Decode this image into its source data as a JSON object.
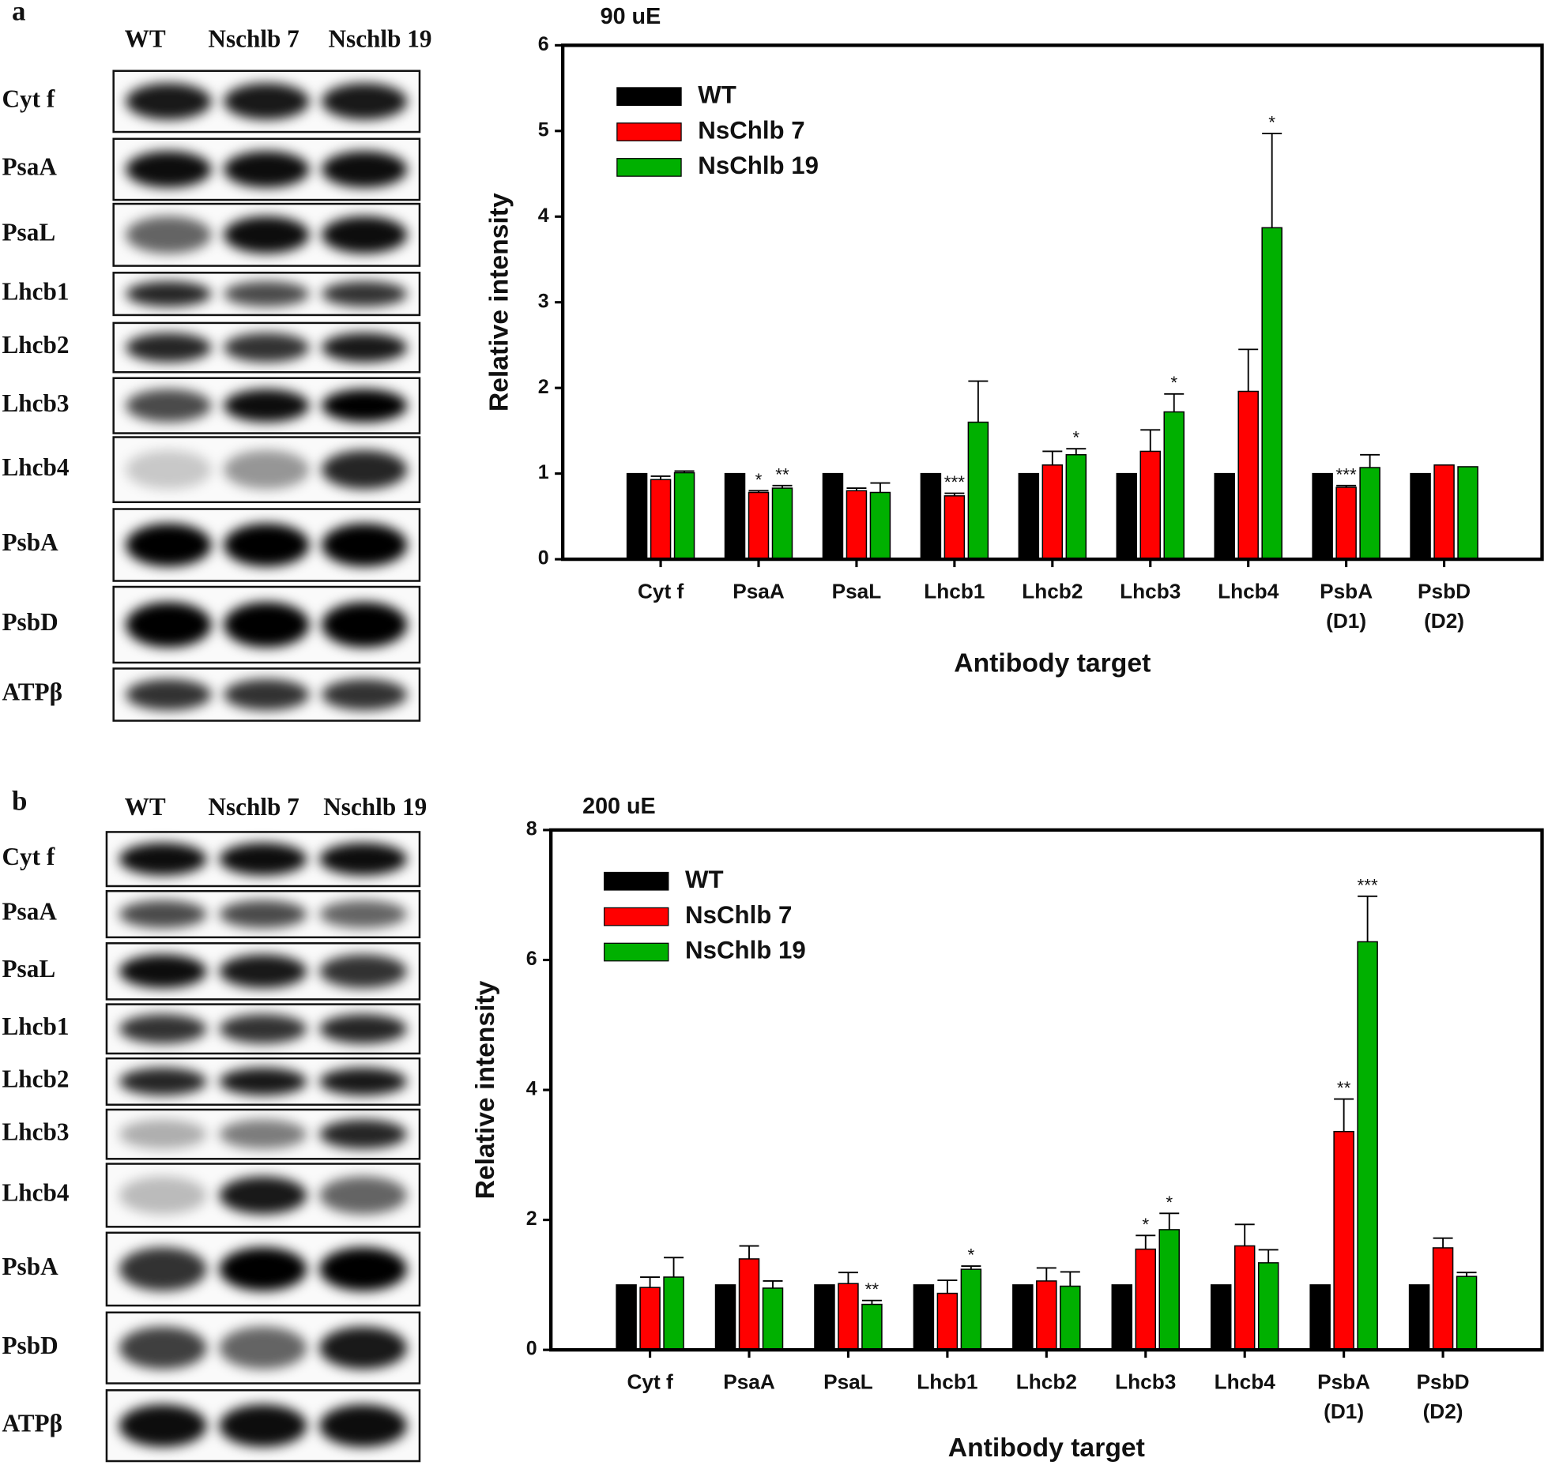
{
  "panels": [
    {
      "label": "a",
      "lanes": [
        "WT",
        "Nschlb 7",
        "Nschlb 19"
      ],
      "proteins": [
        "Cyt f",
        "PsaA",
        "PsaL",
        "Lhcb1",
        "Lhcb2",
        "Lhcb3",
        "Lhcb4",
        "PsbA",
        "PsbD",
        "ATPβ"
      ]
    },
    {
      "label": "b",
      "lanes": [
        "WT",
        "Nschlb 7",
        "Nschlb 19"
      ],
      "proteins": [
        "Cyt f",
        "PsaA",
        "PsaL",
        "Lhcb1",
        "Lhcb2",
        "Lhcb3",
        "Lhcb4",
        "PsbA",
        "PsbD",
        "ATPβ"
      ]
    }
  ],
  "chart_data": [
    {
      "type": "bar",
      "title": "90 uE",
      "xlabel": "Antibody target",
      "ylabel": "Relative intensity",
      "categories": [
        "Cyt f",
        "PsaA",
        "PsaL",
        "Lhcb1",
        "Lhcb2",
        "Lhcb3",
        "Lhcb4",
        "PsbA\n(D1)",
        "PsbD\n(D2)"
      ],
      "ylim": [
        0,
        6
      ],
      "yticks": [
        0,
        1,
        2,
        3,
        4,
        5,
        6
      ],
      "legend": "upper left",
      "series": [
        {
          "name": "WT",
          "color": "#000000",
          "values": [
            1,
            1,
            1,
            1,
            1,
            1,
            1,
            1,
            1
          ]
        },
        {
          "name": "NsChlb 7",
          "color": "#ff0000",
          "values": [
            0.93,
            0.78,
            0.8,
            0.74,
            1.1,
            1.26,
            1.96,
            0.84,
            1.1
          ],
          "errors": [
            0.04,
            0.02,
            0.03,
            0.03,
            0.16,
            0.25,
            0.49,
            0.02,
            null
          ],
          "significance": [
            null,
            "*",
            null,
            "***",
            null,
            null,
            null,
            "***",
            null
          ]
        },
        {
          "name": "NsChlb 19",
          "color": "#00b000",
          "values": [
            1.01,
            0.83,
            0.78,
            1.6,
            1.22,
            1.72,
            3.87,
            1.07,
            1.08
          ],
          "errors": [
            0.02,
            0.03,
            0.11,
            0.48,
            0.07,
            0.21,
            1.1,
            0.15,
            null
          ],
          "significance": [
            null,
            "**",
            null,
            null,
            "*",
            "*",
            "*",
            null,
            null
          ]
        }
      ]
    },
    {
      "type": "bar",
      "title": "200 uE",
      "xlabel": "Antibody target",
      "ylabel": "Relative intensity",
      "categories": [
        "Cyt f",
        "PsaA",
        "PsaL",
        "Lhcb1",
        "Lhcb2",
        "Lhcb3",
        "Lhcb4",
        "PsbA\n(D1)",
        "PsbD\n(D2)"
      ],
      "ylim": [
        0,
        8
      ],
      "yticks": [
        0,
        2,
        4,
        6,
        8
      ],
      "legend": "upper left",
      "series": [
        {
          "name": "WT",
          "color": "#000000",
          "values": [
            1,
            1,
            1,
            1,
            1,
            1,
            1,
            1,
            1
          ]
        },
        {
          "name": "NsChlb 7",
          "color": "#ff0000",
          "values": [
            0.96,
            1.4,
            1.02,
            0.87,
            1.06,
            1.55,
            1.6,
            3.36,
            1.57
          ],
          "errors": [
            0.16,
            0.2,
            0.17,
            0.2,
            0.2,
            0.21,
            0.33,
            0.5,
            0.15
          ],
          "significance": [
            null,
            null,
            null,
            null,
            null,
            "*",
            null,
            "**",
            null
          ]
        },
        {
          "name": "NsChlb 19",
          "color": "#00b000",
          "values": [
            1.12,
            0.95,
            0.7,
            1.24,
            0.98,
            1.85,
            1.34,
            6.28,
            1.13
          ],
          "errors": [
            0.3,
            0.11,
            0.06,
            0.05,
            0.22,
            0.25,
            0.2,
            0.7,
            0.06
          ],
          "significance": [
            null,
            null,
            "**",
            "*",
            null,
            "*",
            null,
            "***",
            null
          ]
        }
      ]
    }
  ]
}
